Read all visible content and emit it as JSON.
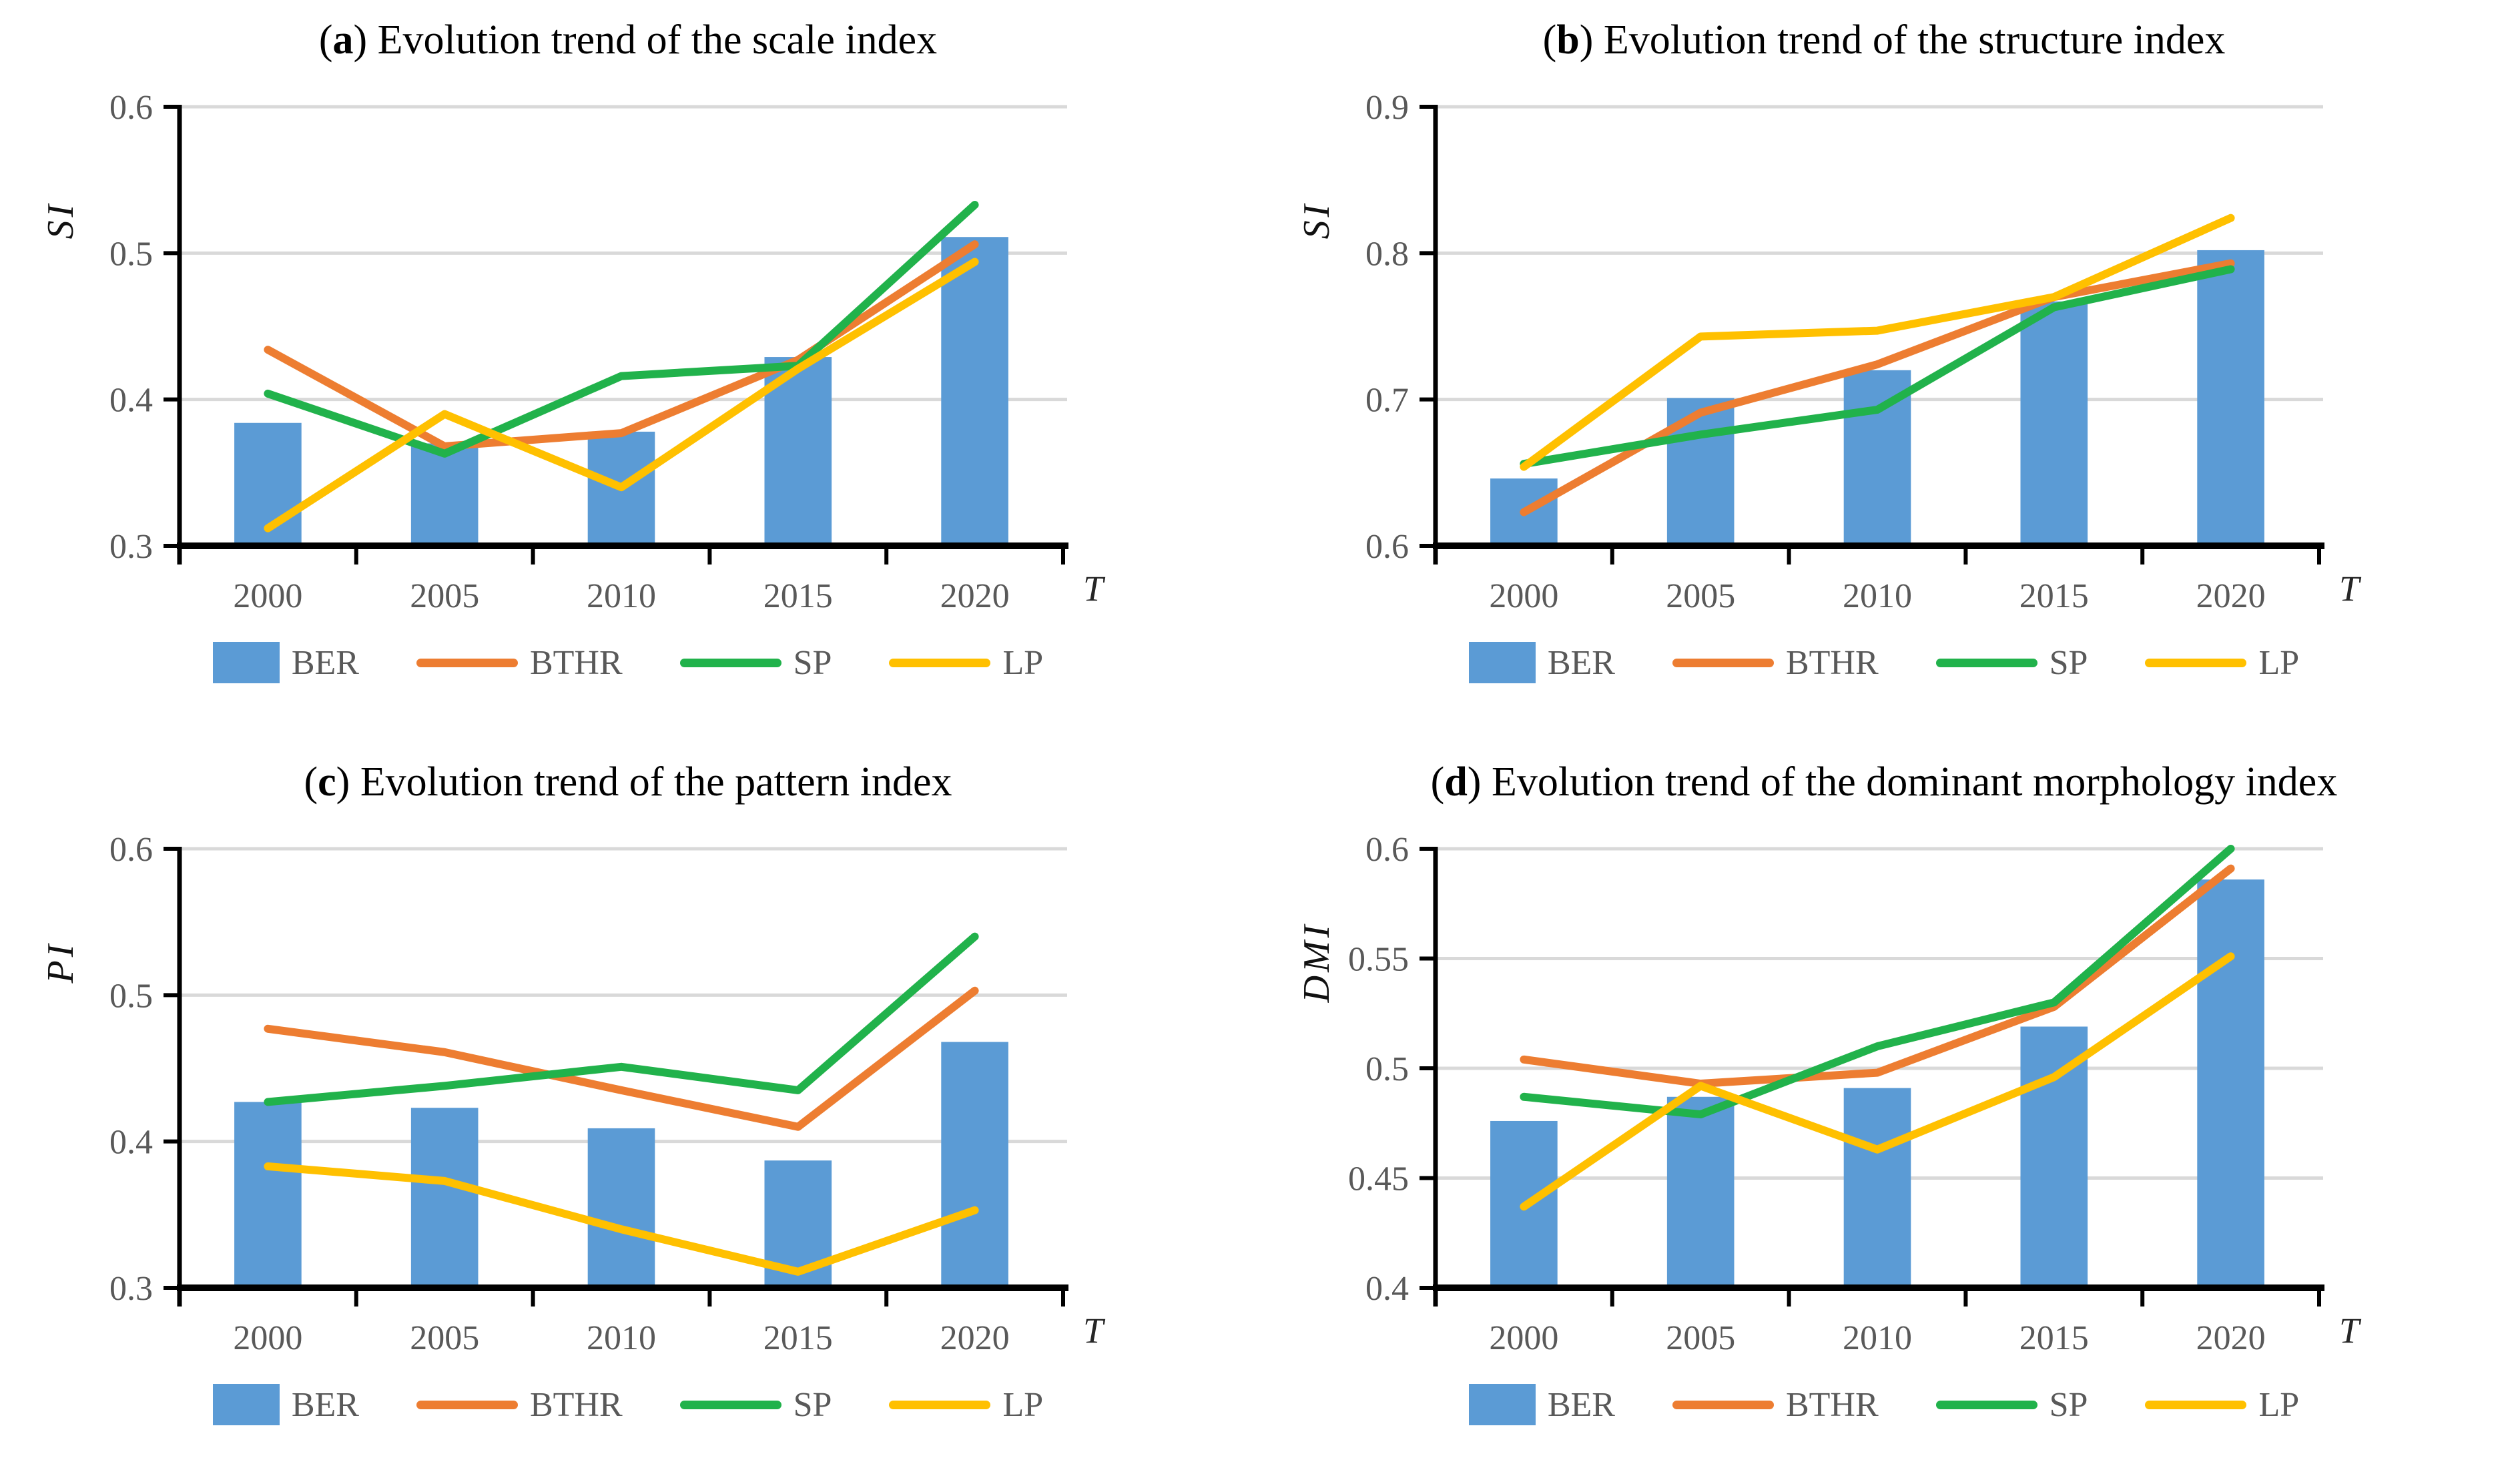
{
  "figure": {
    "x_axis_label": "T",
    "categories": [
      "2000",
      "2005",
      "2010",
      "2015",
      "2020"
    ],
    "colors": {
      "bar_blue": "#5B9BD5",
      "bthr_orange": "#ED7D31",
      "sp_green": "#21B24B",
      "lp_yellow": "#FFC000",
      "gridline": "#D9D9D9",
      "axis": "#000000",
      "tick_text": "#595959",
      "title_text": "#000000"
    },
    "legend": [
      {
        "key": "BER",
        "type": "bar",
        "color": "#5B9BD5"
      },
      {
        "key": "BTHR",
        "type": "line",
        "color": "#ED7D31"
      },
      {
        "key": "SP",
        "type": "line",
        "color": "#21B24B"
      },
      {
        "key": "LP",
        "type": "line",
        "color": "#FFC000"
      }
    ]
  },
  "chart_data": [
    {
      "id": "a",
      "type": "bar+line",
      "panel_label": "a",
      "paren_open": "(",
      "paren_close": ") ",
      "title": "Evolution trend of the scale index",
      "ylabel": "SI",
      "xlabel": "T",
      "categories": [
        "2000",
        "2005",
        "2010",
        "2015",
        "2020"
      ],
      "ylim": [
        0.3,
        0.6
      ],
      "yticks": [
        0.3,
        0.4,
        0.5,
        0.6
      ],
      "ytick_labels": [
        "0.3",
        "0.4",
        "0.5",
        "0.6"
      ],
      "grid": true,
      "legend_position": "bottom",
      "bar_series": {
        "name": "BER",
        "color": "#5B9BD5",
        "values": [
          0.384,
          0.37,
          0.378,
          0.429,
          0.511
        ]
      },
      "line_series": [
        {
          "name": "BTHR",
          "color": "#ED7D31",
          "values": [
            0.434,
            0.368,
            0.377,
            0.427,
            0.506
          ]
        },
        {
          "name": "SP",
          "color": "#21B24B",
          "values": [
            0.404,
            0.363,
            0.416,
            0.423,
            0.533
          ]
        },
        {
          "name": "LP",
          "color": "#FFC000",
          "values": [
            0.312,
            0.39,
            0.34,
            0.421,
            0.494
          ]
        }
      ]
    },
    {
      "id": "b",
      "type": "bar+line",
      "panel_label": "b",
      "paren_open": "(",
      "paren_close": ") ",
      "title": "Evolution trend of the structure index",
      "ylabel": "SI",
      "xlabel": "T",
      "categories": [
        "2000",
        "2005",
        "2010",
        "2015",
        "2020"
      ],
      "ylim": [
        0.6,
        0.9
      ],
      "yticks": [
        0.6,
        0.7,
        0.8,
        0.9
      ],
      "ytick_labels": [
        "0.6",
        "0.7",
        "0.8",
        "0.9"
      ],
      "grid": true,
      "legend_position": "bottom",
      "bar_series": {
        "name": "BER",
        "color": "#5B9BD5",
        "values": [
          0.646,
          0.701,
          0.72,
          0.767,
          0.802
        ]
      },
      "line_series": [
        {
          "name": "BTHR",
          "color": "#ED7D31",
          "values": [
            0.623,
            0.691,
            0.724,
            0.77,
            0.793
          ]
        },
        {
          "name": "SP",
          "color": "#21B24B",
          "values": [
            0.656,
            0.676,
            0.693,
            0.763,
            0.789
          ]
        },
        {
          "name": "LP",
          "color": "#FFC000",
          "values": [
            0.654,
            0.743,
            0.747,
            0.77,
            0.824
          ]
        }
      ]
    },
    {
      "id": "c",
      "type": "bar+line",
      "panel_label": "c",
      "paren_open": "(",
      "paren_close": ") ",
      "title": "Evolution trend of the pattern index",
      "ylabel": "PI",
      "xlabel": "T",
      "categories": [
        "2000",
        "2005",
        "2010",
        "2015",
        "2020"
      ],
      "ylim": [
        0.3,
        0.6
      ],
      "yticks": [
        0.3,
        0.4,
        0.5,
        0.6
      ],
      "ytick_labels": [
        "0.3",
        "0.4",
        "0.5",
        "0.6"
      ],
      "grid": true,
      "legend_position": "bottom",
      "bar_series": {
        "name": "BER",
        "color": "#5B9BD5",
        "values": [
          0.427,
          0.423,
          0.409,
          0.387,
          0.468
        ]
      },
      "line_series": [
        {
          "name": "BTHR",
          "color": "#ED7D31",
          "values": [
            0.477,
            0.461,
            0.435,
            0.41,
            0.503
          ]
        },
        {
          "name": "SP",
          "color": "#21B24B",
          "values": [
            0.427,
            0.438,
            0.451,
            0.435,
            0.54
          ]
        },
        {
          "name": "LP",
          "color": "#FFC000",
          "values": [
            0.383,
            0.373,
            0.34,
            0.311,
            0.353
          ]
        }
      ]
    },
    {
      "id": "d",
      "type": "bar+line",
      "panel_label": "d",
      "paren_open": "(",
      "paren_close": ") ",
      "title": "Evolution trend of the dominant morphology index",
      "ylabel": "DMI",
      "xlabel": "T",
      "categories": [
        "2000",
        "2005",
        "2010",
        "2015",
        "2020"
      ],
      "ylim": [
        0.4,
        0.6
      ],
      "yticks": [
        0.4,
        0.45,
        0.5,
        0.55,
        0.6
      ],
      "ytick_labels": [
        "0.4",
        "0.45",
        "0.5",
        "0.55",
        "0.6"
      ],
      "grid": true,
      "legend_position": "bottom",
      "bar_series": {
        "name": "BER",
        "color": "#5B9BD5",
        "values": [
          0.476,
          0.487,
          0.491,
          0.519,
          0.586
        ]
      },
      "line_series": [
        {
          "name": "BTHR",
          "color": "#ED7D31",
          "values": [
            0.504,
            0.493,
            0.498,
            0.528,
            0.591
          ]
        },
        {
          "name": "SP",
          "color": "#21B24B",
          "values": [
            0.487,
            0.479,
            0.51,
            0.53,
            0.6
          ]
        },
        {
          "name": "LP",
          "color": "#FFC000",
          "values": [
            0.437,
            0.492,
            0.463,
            0.496,
            0.551
          ]
        }
      ]
    }
  ]
}
